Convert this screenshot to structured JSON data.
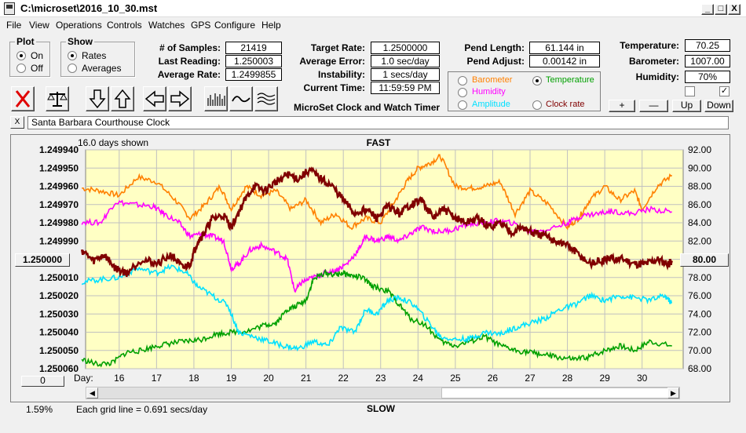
{
  "window": {
    "title": "C:\\microset\\2016_10_30.mst",
    "minimize": "_",
    "maximize": "□",
    "close": "X"
  },
  "menu": [
    "File",
    "View",
    "Operations",
    "Controls",
    "Watches",
    "GPS",
    "Configure",
    "Help"
  ],
  "plot_group": {
    "legend": "Plot",
    "options": [
      {
        "label": "On",
        "selected": true
      },
      {
        "label": "Off",
        "selected": false
      }
    ]
  },
  "show_group": {
    "legend": "Show",
    "options": [
      {
        "label": "Rates",
        "selected": true
      },
      {
        "label": "Averages",
        "selected": false
      }
    ]
  },
  "stats": {
    "num_samples_label": "# of Samples:",
    "num_samples": "21419",
    "last_reading_label": "Last Reading:",
    "last_reading": "1.250003",
    "average_rate_label": "Average Rate:",
    "average_rate": "1.2499855",
    "target_rate_label": "Target Rate:",
    "target_rate": "1.2500000",
    "average_error_label": "Average Error:",
    "average_error": "1.0 sec/day",
    "instability_label": "Instability:",
    "instability": "1 secs/day",
    "current_time_label": "Current Time:",
    "current_time": "11:59:59 PM",
    "pend_length_label": "Pend Length:",
    "pend_length": "61.144 in",
    "pend_adjust_label": "Pend Adjust:",
    "pend_adjust": "0.00142 in",
    "temperature_label": "Temperature:",
    "temperature": "70.25",
    "barometer_label": "Barometer:",
    "barometer": "1007.00",
    "humidity_label": "Humidity:",
    "humidity": "70%"
  },
  "plot_options": [
    {
      "label": "Barometer",
      "color": "#ff8000",
      "selected": false
    },
    {
      "label": "Temperature",
      "color": "#00a000",
      "selected": true
    },
    {
      "label": "Humidity",
      "color": "#ff00ff",
      "selected": false
    },
    {
      "label": "Amplitude",
      "color": "#00e0ff",
      "selected": false
    },
    {
      "label": "Clock rate",
      "color": "#800000",
      "selected": false
    }
  ],
  "checkboxes": [
    {
      "checked": false
    },
    {
      "checked": true
    }
  ],
  "scale_buttons": {
    "plus": "+",
    "minus": "—",
    "up": "Up",
    "down": "Down"
  },
  "toolbar": [
    "clear-icon",
    "balance-icon",
    "down-arrow-icon",
    "up-arrow-icon",
    "left-arrow-icon",
    "right-arrow-icon",
    "bars-icon",
    "line-wave-icon",
    "multi-wave-icon"
  ],
  "app_caption": "MicroSet Clock and Watch Timer",
  "clock_name": "Santa Barbara Courthouse Clock",
  "clock_close": "X",
  "chart_data": {
    "type": "line",
    "days_shown": "16.0 days shown",
    "top_label": "FAST",
    "bottom_label": "SLOW",
    "grid_note": "Each grid line = 0.691 secs/day",
    "zoom": "1.59%",
    "day_label": "Day:",
    "left_center_button": "1.250000",
    "left_bottom_button": "0",
    "right_center_button": "80.00",
    "x_range": [
      15.1,
      31.1
    ],
    "x_ticks": [
      "16",
      "17",
      "18",
      "19",
      "20",
      "21",
      "22",
      "23",
      "24",
      "25",
      "26",
      "27",
      "28",
      "29",
      "30"
    ],
    "x_tick_values": [
      16,
      17,
      18,
      19,
      20,
      21,
      22,
      23,
      24,
      25,
      26,
      27,
      28,
      29,
      30
    ],
    "left_ticks": [
      "1.249940",
      "1.249950",
      "1.249960",
      "1.249970",
      "1.249980",
      "1.249990",
      "",
      "1.250010",
      "1.250020",
      "1.250030",
      "1.250040",
      "1.250050",
      "1.250060"
    ],
    "left_range": [
      1.24994,
      1.25006
    ],
    "right_ticks": [
      "92.00",
      "90.00",
      "88.00",
      "86.00",
      "84.00",
      "82.00",
      "",
      "78.00",
      "76.00",
      "74.00",
      "72.00",
      "70.00",
      "68.00"
    ],
    "right_range": [
      68,
      92
    ],
    "series": [
      {
        "name": "Barometer",
        "color": "#ff8000",
        "x": [
          15.0,
          15.5,
          16.0,
          16.5,
          17.0,
          17.5,
          17.9,
          18.3,
          18.7,
          19.0,
          19.4,
          19.8,
          20.2,
          20.6,
          21.0,
          21.4,
          21.8,
          22.2,
          22.6,
          23.0,
          23.4,
          23.7,
          24.0,
          24.3,
          24.6,
          25.0,
          25.4,
          25.8,
          26.2,
          26.6,
          27.0,
          27.5,
          28.0,
          28.3,
          28.6,
          29.0,
          29.4,
          29.8,
          30.0,
          30.4,
          30.8
        ],
        "y": [
          87.8,
          87.5,
          87.0,
          89.0,
          88.5,
          86.5,
          84.5,
          86.0,
          88.0,
          85.5,
          88.0,
          87.0,
          87.5,
          85.5,
          86.5,
          84.0,
          85.0,
          83.5,
          84.5,
          84.0,
          86.5,
          88.5,
          90.0,
          90.5,
          91.3,
          88.0,
          87.8,
          88.0,
          88.5,
          85.0,
          87.5,
          86.0,
          83.5,
          84.5,
          86.5,
          88.0,
          86.5,
          87.5,
          85.5,
          88.0,
          89.2
        ]
      },
      {
        "name": "Humidity",
        "color": "#ff00ff",
        "x": [
          15.0,
          15.5,
          15.9,
          16.4,
          16.9,
          17.2,
          17.6,
          17.9,
          18.2,
          18.5,
          18.8,
          19.0,
          19.2,
          19.5,
          19.8,
          20.2,
          20.5,
          20.7,
          20.9,
          21.2,
          21.5,
          21.8,
          22.1,
          22.4,
          22.6,
          22.9,
          23.2,
          23.5,
          23.8,
          24.1,
          24.5,
          24.9,
          25.3,
          25.7,
          26.1,
          26.5,
          27.0,
          27.5,
          28.0,
          28.4,
          28.8,
          29.2,
          29.7,
          30.2,
          30.8
        ],
        "y": [
          84.1,
          84.0,
          86.3,
          86.0,
          85.8,
          85.0,
          84.0,
          82.5,
          82.8,
          82.5,
          82.0,
          79.0,
          79.5,
          81.0,
          81.5,
          80.8,
          80.0,
          76.5,
          77.5,
          78.0,
          78.5,
          78.8,
          79.5,
          81.0,
          82.5,
          82.0,
          82.5,
          82.0,
          82.8,
          83.5,
          83.0,
          83.2,
          83.8,
          84.0,
          84.2,
          84.0,
          83.0,
          83.3,
          84.0,
          84.8,
          85.0,
          85.3,
          85.0,
          85.5,
          85.2
        ]
      },
      {
        "name": "Temperature",
        "color": "#00a000",
        "x": [
          15.0,
          15.4,
          15.8,
          16.2,
          16.6,
          17.0,
          17.4,
          17.8,
          18.2,
          18.6,
          19.0,
          19.5,
          19.9,
          20.2,
          20.5,
          20.7,
          21.0,
          21.2,
          21.5,
          21.8,
          22.0,
          22.2,
          22.5,
          22.8,
          23.2,
          23.5,
          23.8,
          24.2,
          24.6,
          25.0,
          25.4,
          25.8,
          26.2,
          26.6,
          27.0,
          27.4,
          27.8,
          28.2,
          28.6,
          29.0,
          29.4,
          29.8,
          30.2,
          30.8
        ],
        "y": [
          69.0,
          68.5,
          68.6,
          69.8,
          70.0,
          70.5,
          70.8,
          71.0,
          71.2,
          71.8,
          72.0,
          72.2,
          72.8,
          73.0,
          74.5,
          74.8,
          75.5,
          77.8,
          78.5,
          78.3,
          78.5,
          78.2,
          78.0,
          77.0,
          76.5,
          75.0,
          73.5,
          72.8,
          71.0,
          70.5,
          71.0,
          71.5,
          70.5,
          70.0,
          69.8,
          69.5,
          69.2,
          69.0,
          69.3,
          70.0,
          70.5,
          70.0,
          71.0,
          70.5
        ]
      },
      {
        "name": "Amplitude",
        "color": "#00e0ff",
        "x": [
          15.0,
          15.5,
          16.0,
          16.5,
          17.0,
          17.4,
          17.8,
          18.1,
          18.5,
          18.9,
          19.2,
          19.6,
          20.0,
          20.4,
          20.8,
          21.2,
          21.6,
          21.9,
          22.3,
          22.6,
          22.9,
          23.2,
          23.5,
          23.9,
          24.3,
          24.6,
          25.0,
          25.4,
          25.8,
          26.2,
          26.6,
          27.0,
          27.4,
          27.8,
          28.2,
          28.6,
          29.0,
          29.4,
          29.8,
          30.2,
          30.6,
          30.8
        ],
        "y": [
          77.5,
          77.8,
          78.0,
          79.0,
          78.5,
          79.2,
          78.5,
          77.0,
          76.0,
          75.0,
          72.0,
          71.5,
          71.0,
          70.5,
          70.2,
          71.0,
          70.5,
          72.5,
          72.0,
          74.5,
          74.0,
          75.5,
          75.8,
          75.0,
          73.0,
          71.5,
          71.2,
          71.3,
          72.0,
          71.8,
          72.5,
          73.0,
          73.5,
          74.5,
          75.0,
          76.0,
          75.5,
          76.0,
          75.8,
          75.5,
          76.0,
          75.2
        ]
      },
      {
        "name": "Clock rate",
        "color": "#800000",
        "x": [
          15.0,
          15.3,
          15.6,
          15.9,
          16.2,
          16.6,
          17.0,
          17.4,
          17.7,
          17.9,
          18.1,
          18.3,
          18.5,
          18.8,
          19.0,
          19.3,
          19.6,
          19.9,
          20.2,
          20.5,
          20.8,
          21.1,
          21.4,
          21.7,
          22.0,
          22.3,
          22.6,
          22.9,
          23.2,
          23.5,
          23.8,
          24.1,
          24.4,
          24.7,
          25.0,
          25.3,
          25.6,
          25.9,
          26.2,
          26.5,
          26.8,
          27.1,
          27.4,
          27.7,
          28.0,
          28.3,
          28.6,
          28.9,
          29.2,
          29.5,
          29.8,
          30.1,
          30.4,
          30.7,
          30.8
        ],
        "y": [
          81.0,
          79.8,
          80.5,
          79.0,
          78.5,
          80.0,
          79.5,
          80.5,
          79.0,
          79.5,
          82.0,
          83.0,
          84.5,
          84.8,
          83.5,
          86.0,
          88.0,
          87.5,
          88.5,
          89.3,
          88.8,
          89.8,
          88.8,
          88.0,
          86.5,
          85.0,
          85.5,
          84.5,
          85.8,
          85.0,
          86.0,
          86.5,
          84.5,
          85.5,
          84.5,
          84.0,
          84.5,
          83.5,
          84.0,
          83.0,
          83.5,
          82.8,
          82.5,
          82.0,
          81.5,
          80.5,
          79.5,
          79.8,
          80.0,
          80.0,
          79.5,
          79.5,
          80.0,
          79.5,
          79.8
        ]
      }
    ]
  }
}
